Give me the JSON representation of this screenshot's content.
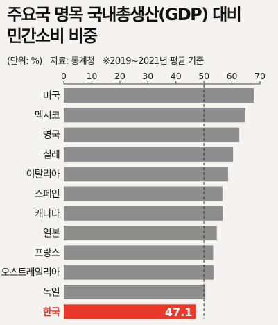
{
  "header": {
    "title_line1": "주요국 명목 국내총생산(GDP) 대비",
    "title_line2": "민간소비 비중",
    "unit": "(단위: %)",
    "source": "자료: 통계청",
    "note": "※2019~2021년 평균 기준"
  },
  "colors": {
    "background": "#f4f3ef",
    "bar": "#8e8e8e",
    "highlight": "#e8392c",
    "highlight_label": "#e8392c",
    "value_label": "#ffffff",
    "reference_line": "#333333",
    "axis": "#444444"
  },
  "chart_data": {
    "type": "bar",
    "orientation": "horizontal",
    "title": "주요국 명목 국내총생산(GDP) 대비 민간소비 비중",
    "xlabel": "",
    "ylabel": "",
    "xlim": [
      0,
      70
    ],
    "xticks": [
      "0",
      "10",
      "20",
      "30",
      "40",
      "50",
      "60",
      "70"
    ],
    "reference_line": 50,
    "reference_style": "dashed",
    "categories": [
      "미국",
      "멕시코",
      "영국",
      "칠레",
      "이탈리아",
      "스페인",
      "캐나다",
      "일본",
      "프랑스",
      "오스트레일리아",
      "독일",
      "한국"
    ],
    "values": [
      67.8,
      64.8,
      62.6,
      60.4,
      58.6,
      56.6,
      56.7,
      54.6,
      53.3,
      53.4,
      50.5,
      47.1
    ],
    "highlight": "한국",
    "highlight_label": "47.1"
  }
}
